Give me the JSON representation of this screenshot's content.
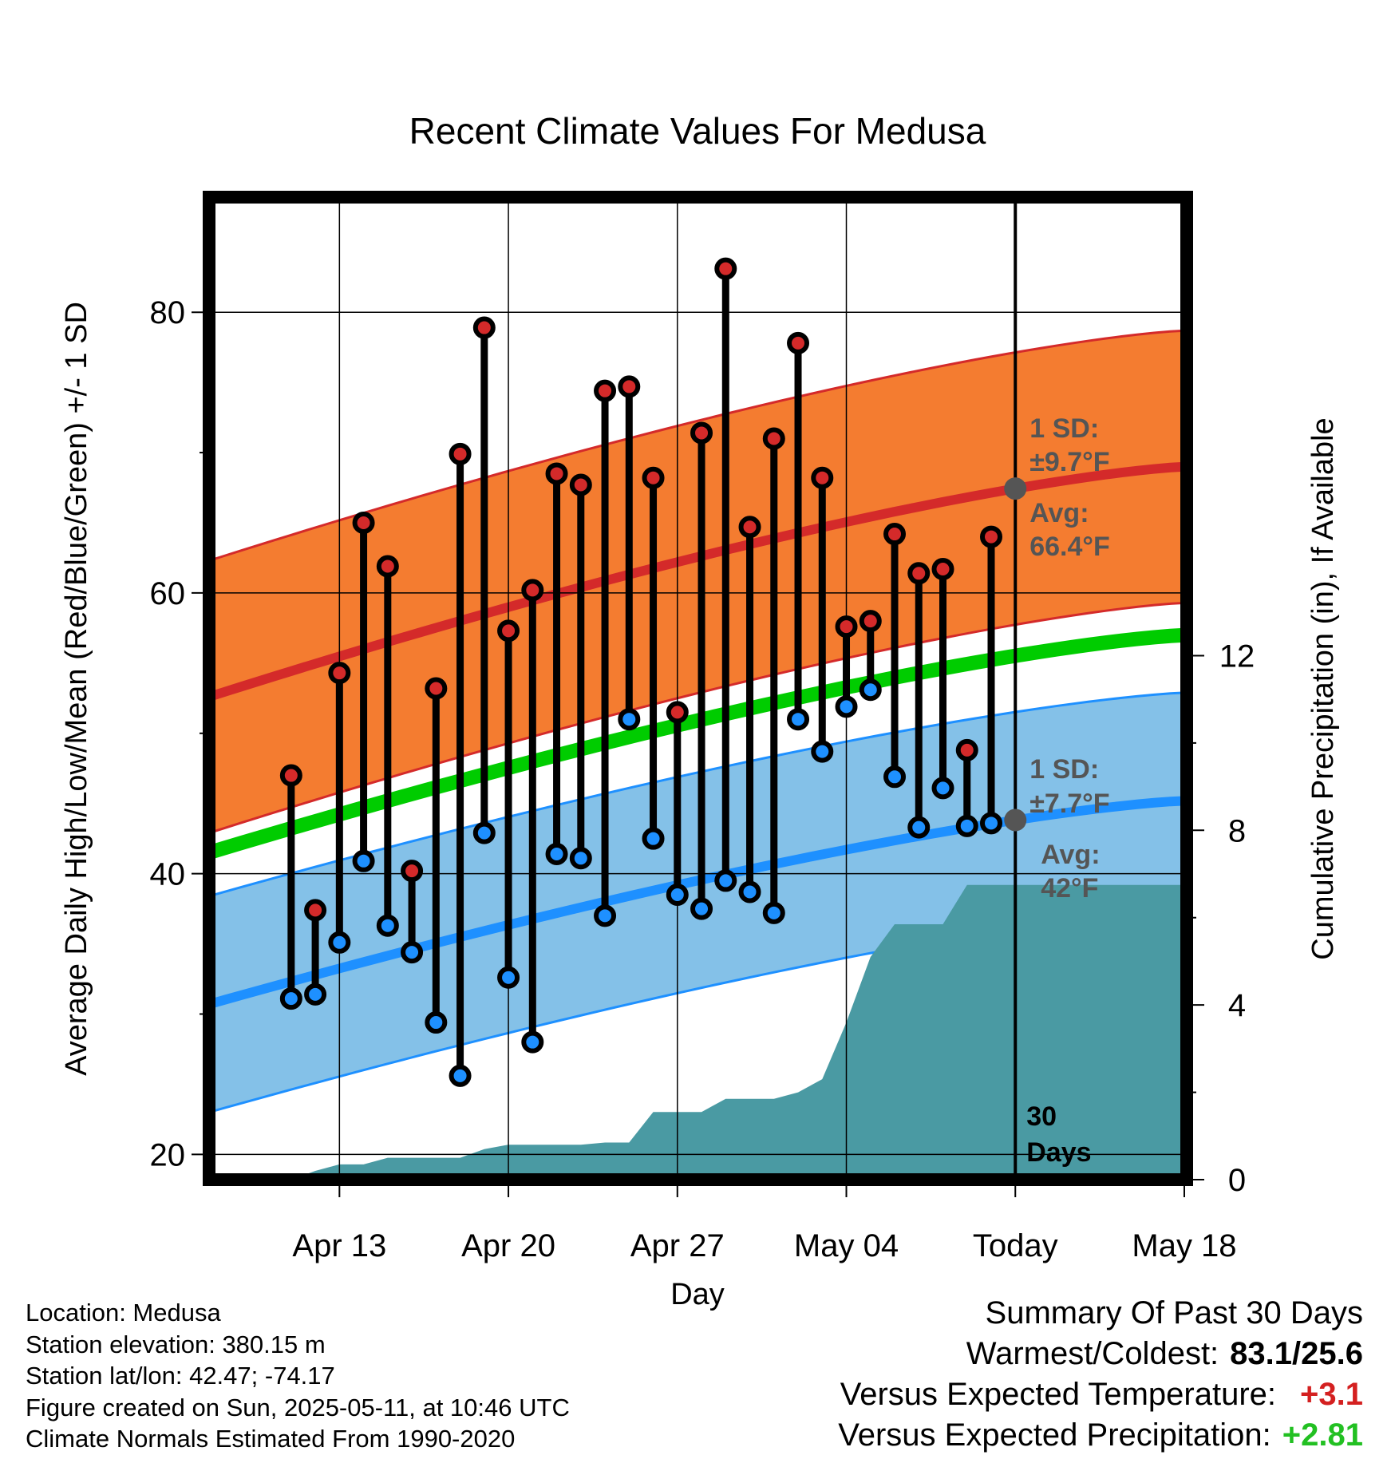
{
  "chart_data": {
    "type": "line",
    "title": "Recent Climate Values For Medusa",
    "xlabel": "Day",
    "ylabel": "Average Daily High/Low/Mean (Red/Blue/Green) +/- 1 SD",
    "y2label": "Cumulative Precipitation (in), If Available",
    "ylim": [
      18.2,
      88.2
    ],
    "y2lim": [
      0,
      22.5
    ],
    "yticks": [
      20,
      40,
      60,
      80
    ],
    "y2ticks": [
      0,
      4,
      8,
      12
    ],
    "xlim": [
      -2.4,
      38.1
    ],
    "xticks": [
      {
        "day": 3,
        "label": "Apr 13"
      },
      {
        "day": 10,
        "label": "Apr 20"
      },
      {
        "day": 17,
        "label": "Apr 27"
      },
      {
        "day": 24,
        "label": "May 04"
      },
      {
        "day": 31,
        "label": "Today"
      },
      {
        "day": 38,
        "label": "May 18"
      }
    ],
    "days": [
      1,
      2,
      3,
      4,
      5,
      6,
      7,
      8,
      9,
      10,
      11,
      12,
      13,
      14,
      15,
      16,
      17,
      18,
      19,
      20,
      21,
      22,
      23,
      24,
      25,
      26,
      27,
      28,
      29,
      30
    ],
    "daily_high": [
      47.0,
      37.4,
      54.3,
      65.0,
      61.9,
      40.2,
      53.2,
      69.9,
      78.9,
      57.3,
      60.2,
      68.5,
      67.7,
      74.4,
      74.7,
      68.2,
      51.5,
      71.4,
      83.1,
      64.7,
      71.0,
      77.8,
      68.2,
      57.6,
      58.0,
      64.2,
      61.4,
      61.7,
      48.8,
      64.0
    ],
    "daily_low": [
      31.1,
      31.4,
      35.1,
      40.9,
      36.3,
      34.4,
      29.4,
      25.6,
      42.9,
      32.6,
      28.0,
      41.4,
      41.1,
      37.0,
      51.0,
      42.5,
      38.5,
      37.5,
      39.5,
      38.7,
      37.2,
      51.0,
      48.7,
      51.9,
      53.1,
      46.9,
      43.3,
      46.1,
      43.4,
      43.6
    ],
    "normal_high": {
      "start": 52.6,
      "end": 69.0,
      "sd": 9.7
    },
    "normal_low": {
      "start": 30.7,
      "end": 45.2,
      "sd": 7.7
    },
    "normal_mean": {
      "start": 41.5,
      "end": 57.0
    },
    "cumulative_precip": [
      [
        0.6,
        0
      ],
      [
        1,
        0
      ],
      [
        2,
        0.2
      ],
      [
        3,
        0.35
      ],
      [
        4,
        0.35
      ],
      [
        5,
        0.5
      ],
      [
        6,
        0.5
      ],
      [
        7,
        0.5
      ],
      [
        8,
        0.5
      ],
      [
        9,
        0.7
      ],
      [
        10,
        0.8
      ],
      [
        11,
        0.8
      ],
      [
        12,
        0.8
      ],
      [
        13,
        0.8
      ],
      [
        14,
        0.85
      ],
      [
        15,
        0.85
      ],
      [
        16,
        1.55
      ],
      [
        17,
        1.55
      ],
      [
        18,
        1.55
      ],
      [
        19,
        1.85
      ],
      [
        20,
        1.85
      ],
      [
        21,
        1.85
      ],
      [
        22,
        2.0
      ],
      [
        23,
        2.3
      ],
      [
        24,
        3.6
      ],
      [
        25,
        5.1
      ],
      [
        26,
        5.85
      ],
      [
        27,
        5.85
      ],
      [
        28,
        5.85
      ],
      [
        29,
        6.75
      ],
      [
        30,
        6.75
      ],
      [
        31,
        6.75
      ],
      [
        38,
        6.75
      ]
    ],
    "today_annotations": {
      "high_sd_label": "1 SD:",
      "high_sd_value": "±9.7°F",
      "high_avg_label": "Avg:",
      "high_avg_value": "66.4°F",
      "low_sd_label": "1 SD:",
      "low_sd_value": "±7.7°F",
      "low_avg_label": "Avg:",
      "low_avg_value": "42°F",
      "window_label_1": "30",
      "window_label_2": "Days"
    },
    "grid": true,
    "colors": {
      "high_band": "#f47c30",
      "high_line": "#d42a2a",
      "low_band": "#84c1e8",
      "low_line": "#1e90ff",
      "mean_line": "#00cc00",
      "precip": "#4a9aa3",
      "high_marker": "#d42a2a",
      "low_marker": "#1e90ff",
      "annotation": "#555555"
    }
  },
  "info": {
    "location": "Location: Medusa",
    "elevation": "Station elevation: 380.15 m",
    "latlon": "Station lat/lon: 42.47; -74.17",
    "created": "Figure created on Sun, 2025-05-11, at 10:46 UTC",
    "normals": "Climate Normals Estimated From 1990-2020"
  },
  "summary": {
    "title": "Summary Of Past 30 Days",
    "warmest_coldest_label": "Warmest/Coldest:",
    "warmest_coldest_value": "83.1/25.6",
    "temp_label": "Versus Expected Temperature:",
    "temp_value": "+3.1",
    "precip_label": "Versus Expected Precipitation:",
    "precip_value": "+2.81"
  }
}
